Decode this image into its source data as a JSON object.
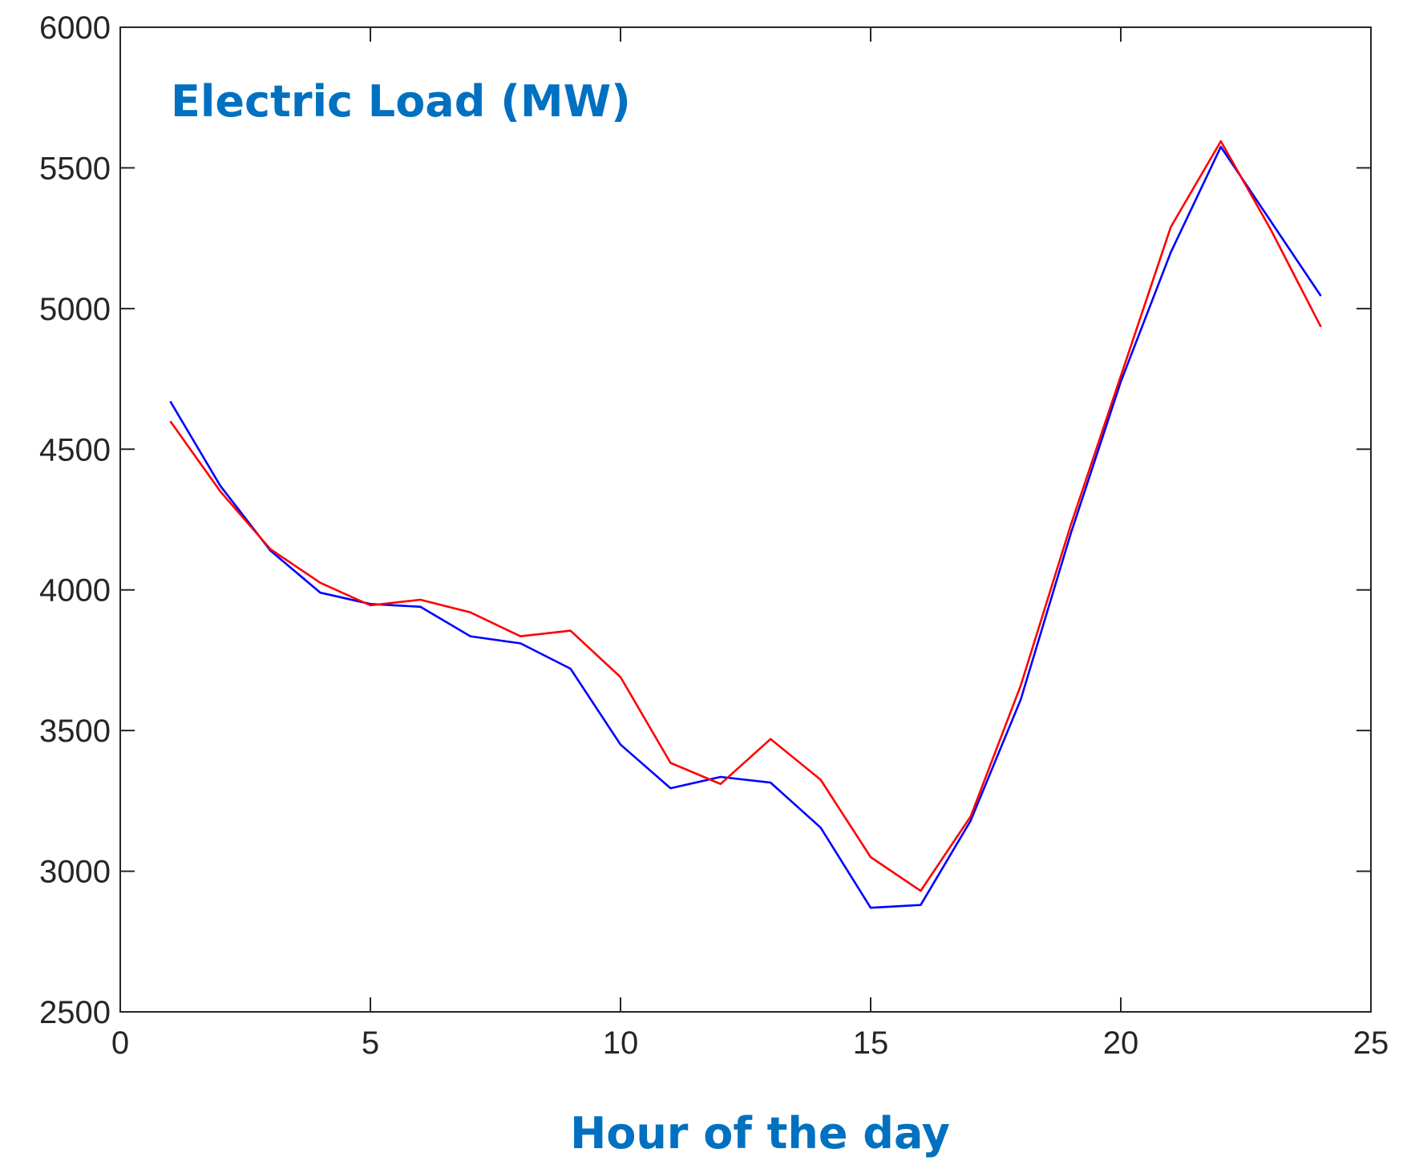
{
  "chart_data": {
    "type": "line",
    "ylabel_in_plot": "Electric Load (MW)",
    "xlabel": "Hour of the day",
    "xlim": [
      0,
      25
    ],
    "ylim": [
      2500,
      6000
    ],
    "x_ticks": [
      0,
      5,
      10,
      15,
      20,
      25
    ],
    "y_ticks": [
      2500,
      3000,
      3500,
      4000,
      4500,
      5000,
      5500,
      6000
    ],
    "grid": false,
    "x": [
      1,
      2,
      3,
      4,
      5,
      6,
      7,
      8,
      9,
      10,
      11,
      12,
      13,
      14,
      15,
      16,
      17,
      18,
      19,
      20,
      21,
      22,
      23,
      24
    ],
    "series": [
      {
        "color": "#0000ff",
        "values": [
          4670,
          4370,
          4140,
          3990,
          3950,
          3940,
          3835,
          3810,
          3720,
          3450,
          3295,
          3335,
          3315,
          3155,
          2870,
          2880,
          3180,
          3610,
          4200,
          4740,
          5200,
          5575,
          5310,
          5045
        ]
      },
      {
        "color": "#ff0000",
        "values": [
          4600,
          4350,
          4145,
          4025,
          3945,
          3965,
          3920,
          3835,
          3855,
          3690,
          3385,
          3310,
          3470,
          3325,
          3050,
          2930,
          3195,
          3660,
          4230,
          4760,
          5290,
          5595,
          5280,
          4935
        ]
      }
    ],
    "colors": {
      "heading": "#0070c0",
      "axis": "#262626"
    }
  }
}
